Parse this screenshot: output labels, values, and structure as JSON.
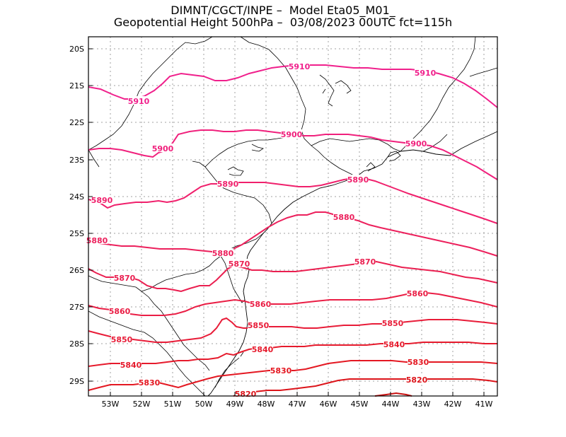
{
  "header": {
    "line1": "DIMNT/CGCT/INPE –  Model Eta05_M01_",
    "line2": "Geopotential Height 500hPa –  03/08/2023 00UTC fct=115h"
  },
  "axes": {
    "lat_labels": [
      "20S",
      "21S",
      "22S",
      "23S",
      "24S",
      "25S",
      "26S",
      "27S",
      "28S",
      "29S"
    ],
    "lon_labels": [
      "53W",
      "52W",
      "51W",
      "50W",
      "49W",
      "48W",
      "47W",
      "46W",
      "45W",
      "44W",
      "43W",
      "42W",
      "41W"
    ]
  },
  "contour_labels": [
    {
      "text": "5910"
    },
    {
      "text": "5910"
    },
    {
      "text": "5910"
    },
    {
      "text": "5900"
    },
    {
      "text": "5900"
    },
    {
      "text": "5900"
    },
    {
      "text": "5890"
    },
    {
      "text": "5890"
    },
    {
      "text": "5890"
    },
    {
      "text": "5880"
    },
    {
      "text": "5880"
    },
    {
      "text": "5880"
    },
    {
      "text": "5870"
    },
    {
      "text": "5870"
    },
    {
      "text": "5870"
    },
    {
      "text": "5860"
    },
    {
      "text": "5860"
    },
    {
      "text": "5860"
    },
    {
      "text": "5850"
    },
    {
      "text": "5850"
    },
    {
      "text": "5850"
    },
    {
      "text": "5840"
    },
    {
      "text": "5840"
    },
    {
      "text": "5840"
    },
    {
      "text": "5830"
    },
    {
      "text": "5830"
    },
    {
      "text": "5830"
    },
    {
      "text": "5820"
    },
    {
      "text": "5820"
    }
  ],
  "colors": {
    "c5910": "#f0208c",
    "c5900": "#f0207c",
    "c5890": "#f0206c",
    "c5880": "#ec205c",
    "c5870": "#ea1f50",
    "c5860": "#ea1e45",
    "c5850": "#e81c38",
    "c5840": "#e61a2c",
    "c5830": "#e41822",
    "c5820": "#dc141a"
  }
}
